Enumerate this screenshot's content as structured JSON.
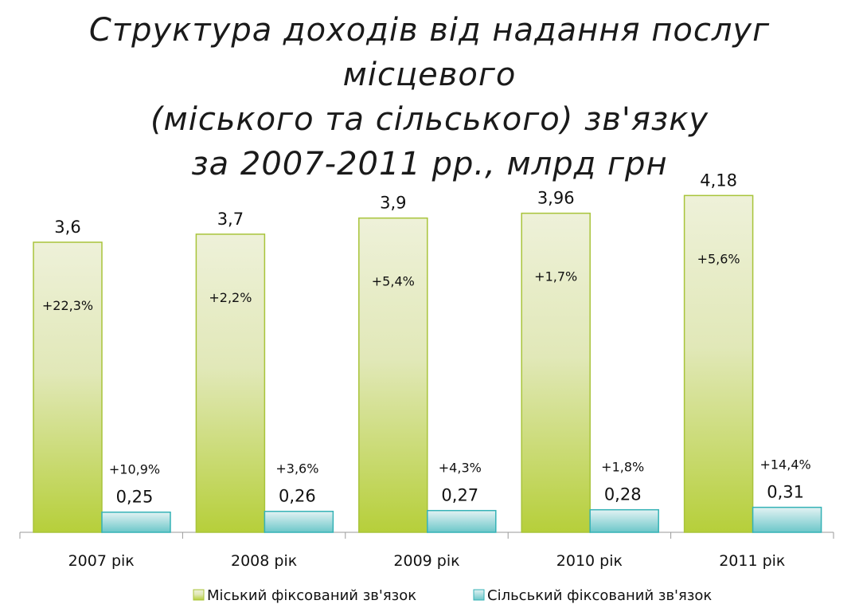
{
  "chart_data": {
    "type": "bar",
    "title_lines": [
      "Структура доходів від надання послуг місцевого",
      "(міського та сільського) зв'язку",
      "за 2007-2011 рр., млрд грн"
    ],
    "categories": [
      "2007 рік",
      "2008 рік",
      "2009 рік",
      "2010 рік",
      "2011 рік"
    ],
    "ylim": [
      0,
      4.5
    ],
    "grid": false,
    "legend_position": "bottom",
    "series": [
      {
        "name": "Міський фіксований зв'язок",
        "values": [
          3.6,
          3.7,
          3.9,
          3.96,
          4.18
        ],
        "value_labels": [
          "3,6",
          "3,7",
          "3,9",
          "3,96",
          "4,18"
        ],
        "growth_labels": [
          "+22,3%",
          "+2,2%",
          "+5,4%",
          "+1,7%",
          "+5,6%"
        ],
        "color_top": "#eef1d9",
        "color_bottom": "#b6cf3a",
        "border": "#a8c43a"
      },
      {
        "name": "Сільський фіксований зв'язок",
        "values": [
          0.25,
          0.26,
          0.27,
          0.28,
          0.31
        ],
        "value_labels": [
          "0,25",
          "0,26",
          "0,27",
          "0,28",
          "0,31"
        ],
        "growth_labels": [
          "+10,9%",
          "+3,6%",
          "+4,3%",
          "+1,8%",
          "+14,4%"
        ],
        "color_top": "#e3f2f3",
        "color_bottom": "#6cc7c9",
        "border": "#35b2b6"
      }
    ]
  }
}
